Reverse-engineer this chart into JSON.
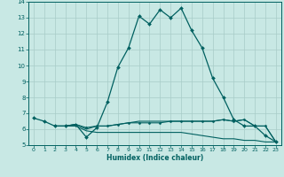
{
  "xlabel": "Humidex (Indice chaleur)",
  "ylabel": "",
  "xlim": [
    -0.5,
    23.5
  ],
  "ylim": [
    5,
    14
  ],
  "yticks": [
    5,
    6,
    7,
    8,
    9,
    10,
    11,
    12,
    13,
    14
  ],
  "xticks": [
    0,
    1,
    2,
    3,
    4,
    5,
    6,
    7,
    8,
    9,
    10,
    11,
    12,
    13,
    14,
    15,
    16,
    17,
    18,
    19,
    20,
    21,
    22,
    23
  ],
  "bg_color": "#c8e8e4",
  "grid_color": "#a8ccc8",
  "line_color": "#006060",
  "lines": [
    {
      "x": [
        0,
        1,
        2,
        3,
        4,
        5,
        6,
        7,
        8,
        9,
        10,
        11,
        12,
        13,
        14,
        15,
        16,
        17,
        18,
        19,
        20,
        21,
        22,
        23
      ],
      "y": [
        6.7,
        6.5,
        6.2,
        6.2,
        6.3,
        5.5,
        6.1,
        7.7,
        9.9,
        11.1,
        13.1,
        12.6,
        13.5,
        13.0,
        13.6,
        12.2,
        11.1,
        9.2,
        8.0,
        6.6,
        6.2,
        6.2,
        5.6,
        5.2
      ],
      "marker": "D",
      "markersize": 2.0,
      "linewidth": 0.9
    },
    {
      "x": [
        2,
        3,
        4,
        5,
        6,
        7,
        8,
        9,
        10,
        11,
        12,
        13,
        14,
        15,
        16,
        17,
        18,
        19,
        20,
        21,
        22,
        23
      ],
      "y": [
        6.2,
        6.2,
        6.3,
        6.1,
        6.2,
        6.2,
        6.3,
        6.4,
        6.4,
        6.4,
        6.4,
        6.5,
        6.5,
        6.5,
        6.5,
        6.5,
        6.6,
        6.5,
        6.6,
        6.2,
        6.2,
        5.2
      ],
      "marker": "D",
      "markersize": 1.5,
      "linewidth": 0.8
    },
    {
      "x": [
        2,
        3,
        4,
        5,
        6,
        7,
        8,
        9,
        10,
        11,
        12,
        13,
        14,
        15,
        16,
        17,
        18,
        19,
        20,
        21,
        22,
        23
      ],
      "y": [
        6.2,
        6.2,
        6.2,
        5.9,
        5.8,
        5.8,
        5.8,
        5.8,
        5.8,
        5.8,
        5.8,
        5.8,
        5.8,
        5.7,
        5.6,
        5.5,
        5.4,
        5.4,
        5.3,
        5.3,
        5.2,
        5.2
      ],
      "marker": null,
      "markersize": 0,
      "linewidth": 0.8
    },
    {
      "x": [
        3,
        4,
        5,
        6,
        7,
        8,
        9,
        10,
        11,
        12,
        13,
        14,
        15,
        16,
        17,
        18,
        19,
        20,
        21,
        22,
        23
      ],
      "y": [
        6.2,
        6.3,
        6.0,
        6.2,
        6.2,
        6.3,
        6.4,
        6.5,
        6.5,
        6.5,
        6.5,
        6.5,
        6.5,
        6.5,
        6.5,
        6.6,
        6.5,
        6.6,
        6.2,
        6.2,
        5.2
      ],
      "marker": null,
      "markersize": 0,
      "linewidth": 0.8
    }
  ]
}
